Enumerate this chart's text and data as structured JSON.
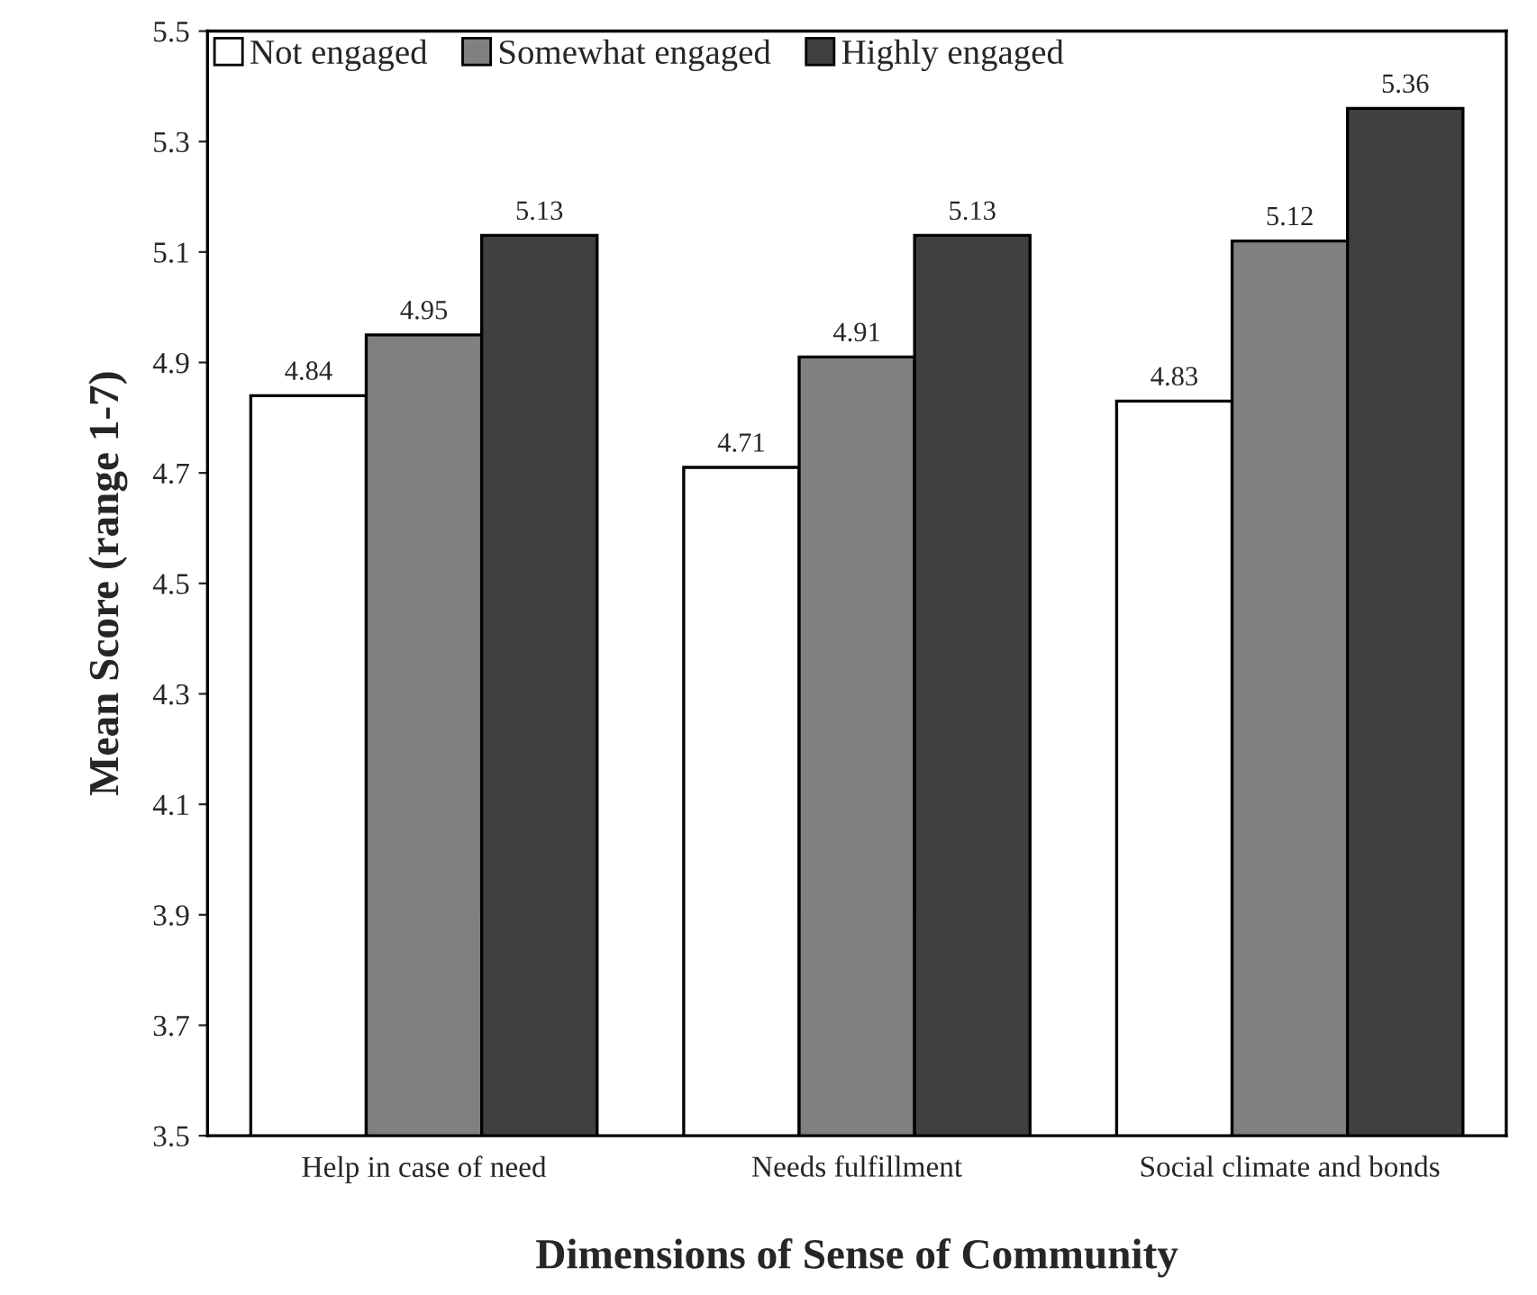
{
  "chart_data": {
    "type": "bar",
    "xlabel": "Dimensions of Sense of Community",
    "ylabel": "Mean Score (range 1-7)",
    "categories": [
      "Help in case of need",
      "Needs fulfillment",
      "Social climate and bonds"
    ],
    "series": [
      {
        "name": "Not engaged",
        "color": "#ffffff",
        "values": [
          4.84,
          4.71,
          4.83
        ]
      },
      {
        "name": "Somewhat engaged",
        "color": "#808080",
        "values": [
          4.95,
          4.91,
          5.12
        ]
      },
      {
        "name": "Highly engaged",
        "color": "#404040",
        "values": [
          5.13,
          5.13,
          5.36
        ]
      }
    ],
    "ylim": [
      3.5,
      5.5
    ],
    "yticks": [
      3.5,
      3.7,
      3.9,
      4.1,
      4.3,
      4.5,
      4.7,
      4.9,
      5.1,
      5.3,
      5.5
    ],
    "data_labels": true,
    "legend": "top left",
    "grid": false
  }
}
